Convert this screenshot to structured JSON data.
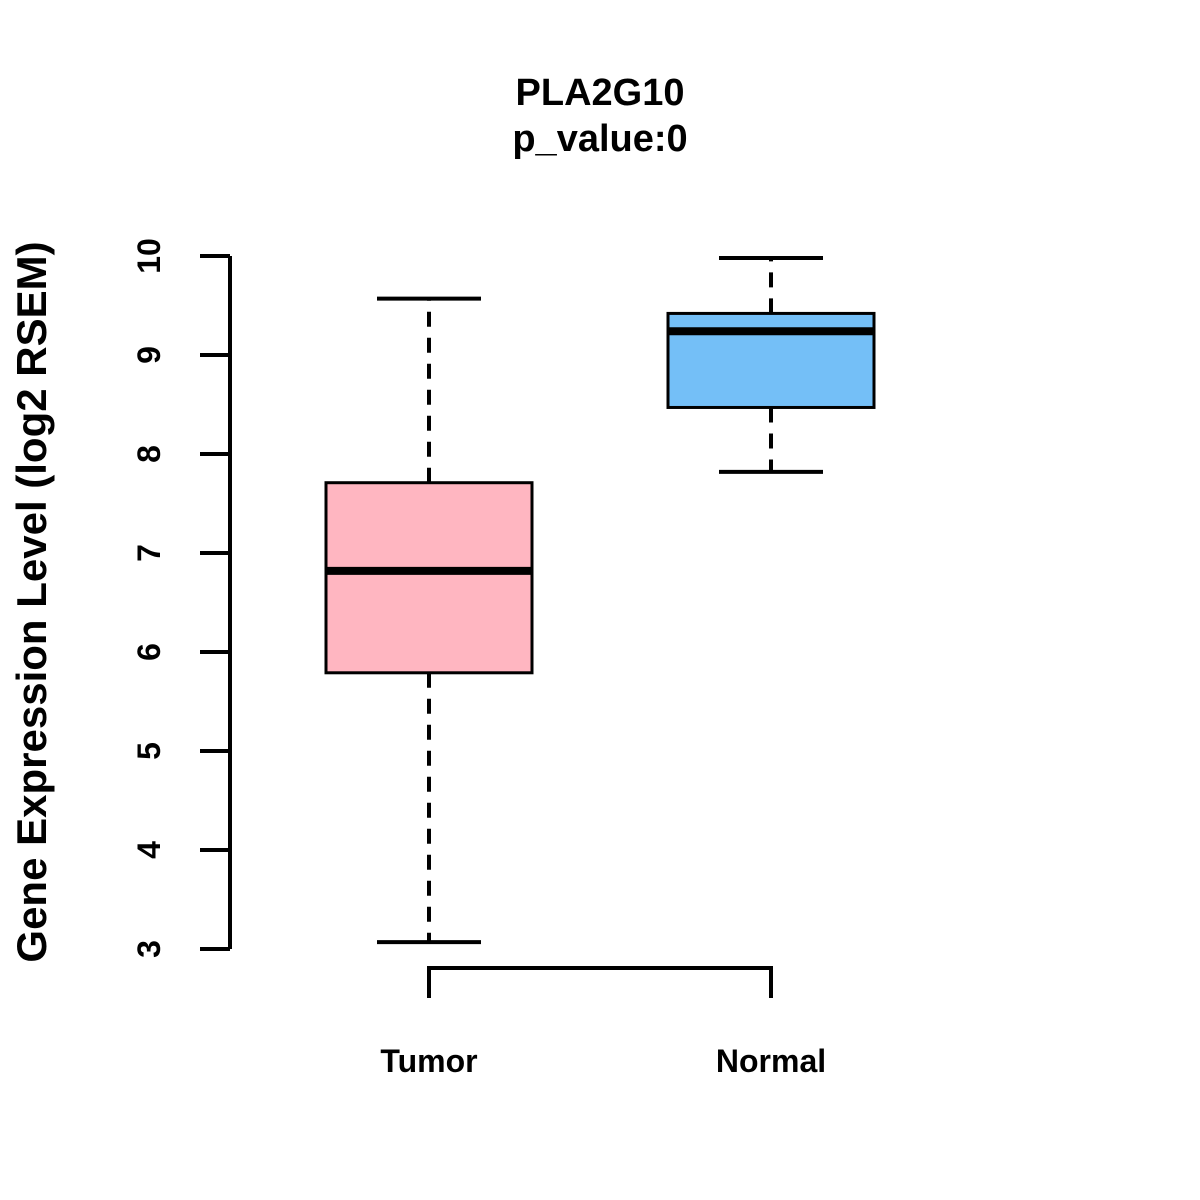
{
  "chart_data": {
    "type": "boxplot",
    "title": "PLA2G10",
    "subtitle": "p_value:0",
    "ylabel": "Gene Expression Level (log2 RSEM)",
    "xlabel": "",
    "ylim": [
      3,
      10
    ],
    "yticks": [
      3,
      4,
      5,
      6,
      7,
      8,
      9,
      10
    ],
    "grid": false,
    "legend": "none",
    "categories": [
      "Tumor",
      "Normal"
    ],
    "series": [
      {
        "name": "Tumor",
        "min": 3.07,
        "q1": 5.79,
        "median": 6.82,
        "q3": 7.71,
        "max": 9.57,
        "color": "#FFB6C1"
      },
      {
        "name": "Normal",
        "min": 7.82,
        "q1": 8.47,
        "median": 9.24,
        "q3": 9.42,
        "max": 9.98,
        "color": "#74BFF7"
      }
    ]
  }
}
